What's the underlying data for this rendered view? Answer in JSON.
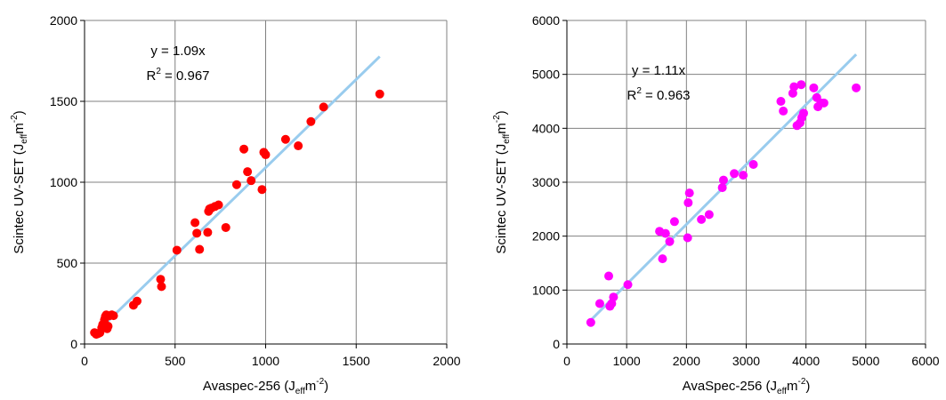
{
  "chart_data": [
    {
      "type": "scatter",
      "xlabel": {
        "main": "Avaspec-256 (J",
        "sub": "eff",
        "mid": "m",
        "sup": "-2",
        "end": ")"
      },
      "ylabel": {
        "main": "Scintec UV-SET (J",
        "sub": "eff",
        "mid": "m",
        "sup": "-2",
        "end": ")"
      },
      "xlim": [
        0,
        2000
      ],
      "ylim": [
        0,
        2000
      ],
      "xticks": [
        "0",
        "500",
        "1000",
        "1500",
        "2000"
      ],
      "yticks": [
        "0",
        "500",
        "1000",
        "1500",
        "2000"
      ],
      "grid": true,
      "marker_color": "#ff0000",
      "trend_color": "#99ccee",
      "equation": "y = 1.09x",
      "r2": {
        "main": "R",
        "sup": "2",
        "end": " = 0.967"
      },
      "trend": {
        "x": [
          50,
          1630
        ],
        "y": [
          55,
          1777
        ]
      },
      "points": [
        [
          55,
          70
        ],
        [
          65,
          60
        ],
        [
          75,
          65
        ],
        [
          85,
          70
        ],
        [
          95,
          100
        ],
        [
          100,
          120
        ],
        [
          110,
          150
        ],
        [
          115,
          170
        ],
        [
          120,
          180
        ],
        [
          125,
          95
        ],
        [
          130,
          110
        ],
        [
          140,
          175
        ],
        [
          150,
          180
        ],
        [
          160,
          175
        ],
        [
          270,
          240
        ],
        [
          290,
          265
        ],
        [
          420,
          400
        ],
        [
          425,
          355
        ],
        [
          510,
          580
        ],
        [
          610,
          750
        ],
        [
          620,
          685
        ],
        [
          635,
          585
        ],
        [
          680,
          690
        ],
        [
          685,
          820
        ],
        [
          690,
          835
        ],
        [
          700,
          840
        ],
        [
          720,
          850
        ],
        [
          740,
          860
        ],
        [
          780,
          720
        ],
        [
          840,
          985
        ],
        [
          880,
          1205
        ],
        [
          900,
          1065
        ],
        [
          920,
          1010
        ],
        [
          980,
          955
        ],
        [
          990,
          1185
        ],
        [
          1000,
          1170
        ],
        [
          1110,
          1265
        ],
        [
          1180,
          1225
        ],
        [
          1250,
          1375
        ],
        [
          1320,
          1465
        ],
        [
          1630,
          1545
        ]
      ]
    },
    {
      "type": "scatter",
      "xlabel": {
        "main": "AvaSpec-256 (J",
        "sub": "eff",
        "mid": "m",
        "sup": "-2",
        "end": ")"
      },
      "ylabel": {
        "main": "Scintec UV-SET (J",
        "sub": "eff",
        "mid": "m",
        "sup": "-2",
        "end": ")"
      },
      "xlim": [
        0,
        6000
      ],
      "ylim": [
        0,
        6000
      ],
      "xticks": [
        "0",
        "1000",
        "2000",
        "3000",
        "4000",
        "5000",
        "6000"
      ],
      "yticks": [
        "0",
        "1000",
        "2000",
        "3000",
        "4000",
        "5000",
        "6000"
      ],
      "grid": true,
      "marker_color": "#ff00ff",
      "trend_color": "#99ccee",
      "equation": "y = 1.11x",
      "r2": {
        "main": "R",
        "sup": "2",
        "end": " = 0.963"
      },
      "trend": {
        "x": [
          380,
          4840
        ],
        "y": [
          420,
          5370
        ]
      },
      "points": [
        [
          400,
          400
        ],
        [
          550,
          750
        ],
        [
          700,
          1260
        ],
        [
          720,
          700
        ],
        [
          750,
          750
        ],
        [
          780,
          870
        ],
        [
          1020,
          1100
        ],
        [
          1550,
          2090
        ],
        [
          1600,
          1580
        ],
        [
          1650,
          2050
        ],
        [
          1720,
          1900
        ],
        [
          1800,
          2270
        ],
        [
          2020,
          1970
        ],
        [
          2030,
          2620
        ],
        [
          2050,
          2800
        ],
        [
          2250,
          2310
        ],
        [
          2380,
          2400
        ],
        [
          2600,
          2900
        ],
        [
          2620,
          3040
        ],
        [
          2800,
          3160
        ],
        [
          2950,
          3130
        ],
        [
          3120,
          3330
        ],
        [
          3580,
          4500
        ],
        [
          3620,
          4320
        ],
        [
          3780,
          4650
        ],
        [
          3800,
          4770
        ],
        [
          3850,
          4050
        ],
        [
          3900,
          4100
        ],
        [
          3920,
          4810
        ],
        [
          3930,
          4200
        ],
        [
          3960,
          4280
        ],
        [
          4130,
          4750
        ],
        [
          4180,
          4570
        ],
        [
          4200,
          4400
        ],
        [
          4250,
          4470
        ],
        [
          4300,
          4470
        ],
        [
          4840,
          4750
        ]
      ]
    }
  ]
}
